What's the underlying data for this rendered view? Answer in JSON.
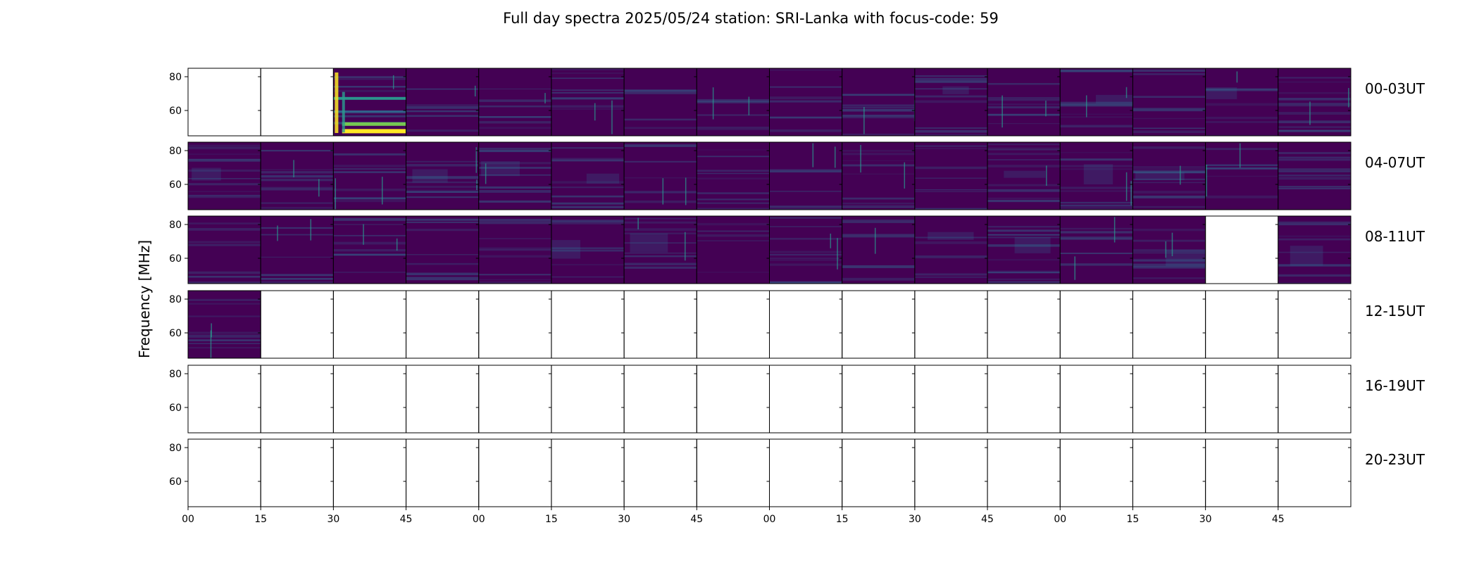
{
  "chart_data": {
    "type": "heatmap",
    "title": "Full day spectra 2025/05/24 station: SRI-Lanka with focus-code: 59",
    "ylabel": "Frequency [MHz]",
    "xlabel": "",
    "ylim": [
      45,
      85
    ],
    "yticks": [
      "60",
      "80"
    ],
    "xticks": [
      "00",
      "15",
      "30",
      "45",
      "00",
      "15",
      "30",
      "45",
      "00",
      "15",
      "30",
      "45",
      "00",
      "15",
      "30",
      "45"
    ],
    "rows": [
      {
        "label": "00-03UT",
        "status": [
          0,
          0,
          2,
          1,
          1,
          1,
          1,
          1,
          1,
          1,
          1,
          1,
          1,
          1,
          1,
          1
        ]
      },
      {
        "label": "04-07UT",
        "status": [
          1,
          1,
          1,
          1,
          1,
          1,
          1,
          1,
          1,
          1,
          1,
          1,
          1,
          1,
          1,
          1
        ]
      },
      {
        "label": "08-11UT",
        "status": [
          1,
          1,
          1,
          1,
          1,
          1,
          1,
          1,
          1,
          1,
          1,
          1,
          1,
          1,
          0,
          1
        ]
      },
      {
        "label": "12-15UT",
        "status": [
          1,
          0,
          0,
          0,
          0,
          0,
          0,
          0,
          0,
          0,
          0,
          0,
          0,
          0,
          0,
          0
        ]
      },
      {
        "label": "16-19UT",
        "status": [
          0,
          0,
          0,
          0,
          0,
          0,
          0,
          0,
          0,
          0,
          0,
          0,
          0,
          0,
          0,
          0
        ]
      },
      {
        "label": "20-23UT",
        "status": [
          0,
          0,
          0,
          0,
          0,
          0,
          0,
          0,
          0,
          0,
          0,
          0,
          0,
          0,
          0,
          0
        ]
      }
    ],
    "status_legend": [
      "0 = no data (blank panel)",
      "1 = spectrum present",
      "2 = strong bursts"
    ],
    "colormap": "viridis",
    "colors": {
      "low": "#440154",
      "mid": "#31688e",
      "teal": "#2a9d8f",
      "high": "#fde725",
      "frame": "#000000"
    },
    "grid": false,
    "legend": "none"
  }
}
